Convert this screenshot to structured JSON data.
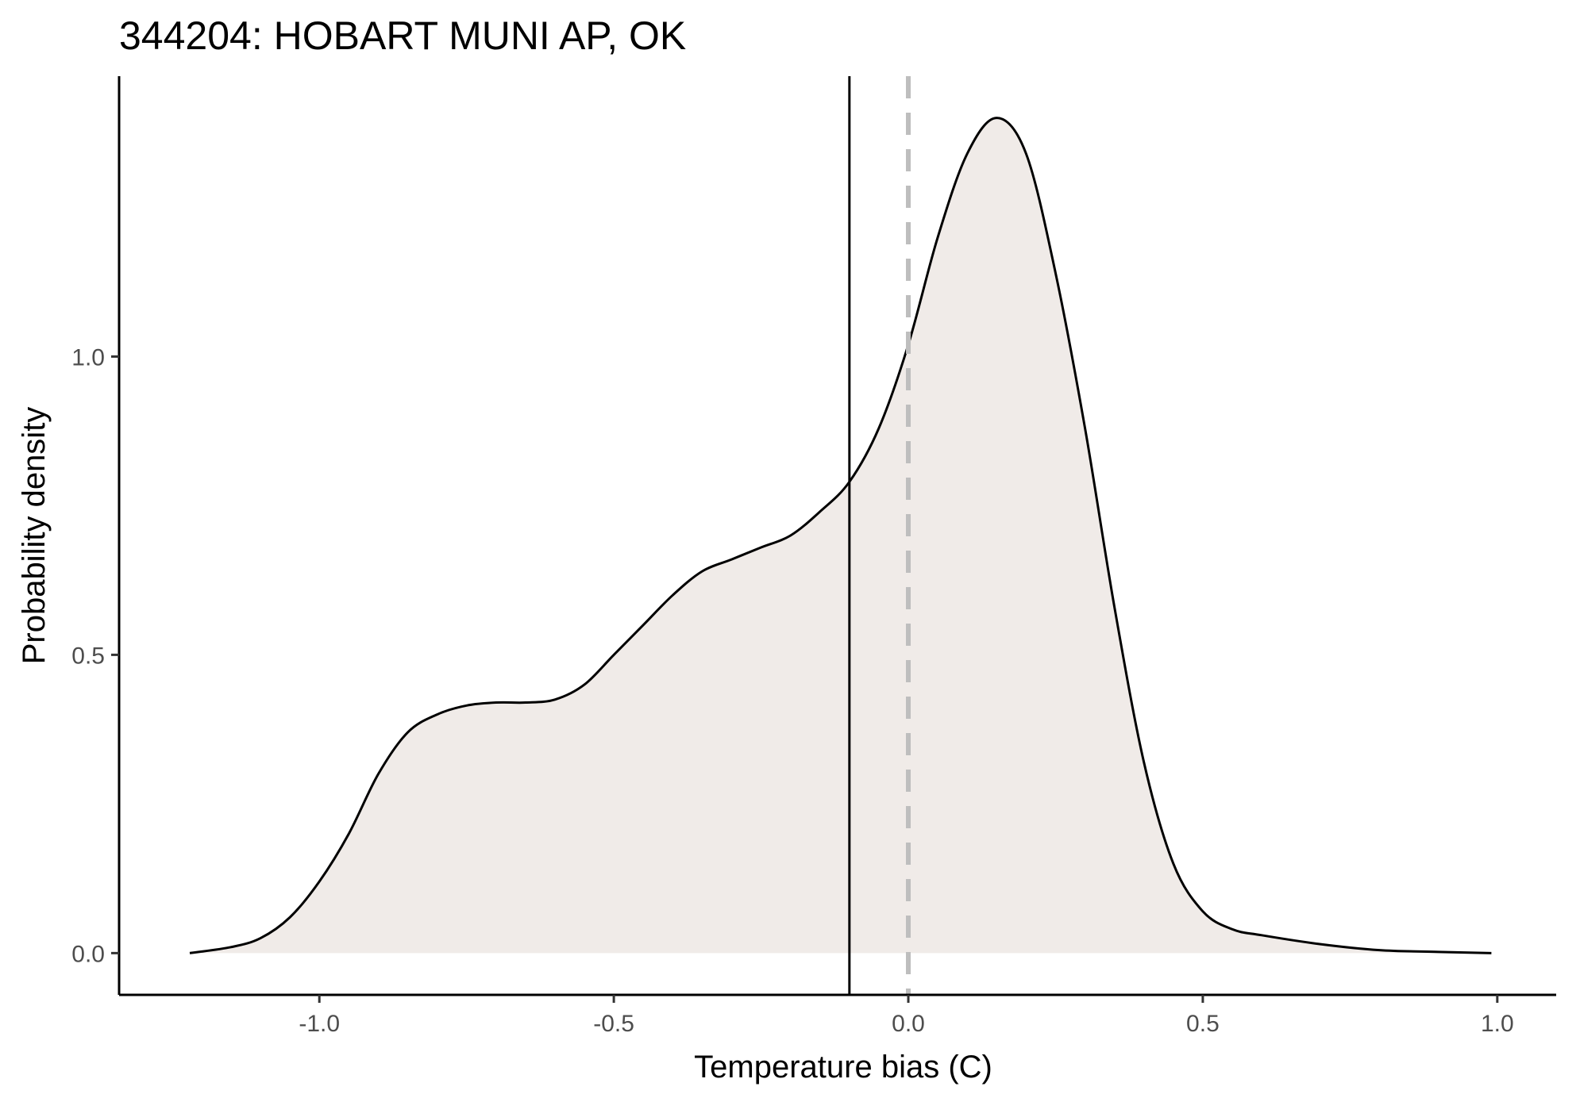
{
  "chart_data": {
    "type": "area",
    "title": "344204: HOBART MUNI AP, OK",
    "xlabel": "Temperature bias (C)",
    "ylabel": "Probability density",
    "xlim": [
      -1.34,
      1.1
    ],
    "ylim": [
      -0.07,
      1.47
    ],
    "x_ticks": [
      -1.0,
      -0.5,
      0.0,
      0.5,
      1.0
    ],
    "x_tick_labels": [
      "-1.0",
      "-0.5",
      "0.0",
      "0.5",
      "1.0"
    ],
    "y_ticks": [
      0.0,
      0.5,
      1.0
    ],
    "y_tick_labels": [
      "0.0",
      "0.5",
      "1.0"
    ],
    "grid": false,
    "fill_color": "#f0ebe8",
    "line_color": "#000000",
    "series": [
      {
        "x": [
          -1.22,
          -1.15,
          -1.1,
          -1.05,
          -1.0,
          -0.95,
          -0.9,
          -0.85,
          -0.8,
          -0.75,
          -0.7,
          -0.65,
          -0.6,
          -0.55,
          -0.5,
          -0.45,
          -0.4,
          -0.35,
          -0.3,
          -0.25,
          -0.2,
          -0.15,
          -0.1,
          -0.05,
          0.0,
          0.05,
          0.1,
          0.15,
          0.2,
          0.25,
          0.3,
          0.35,
          0.4,
          0.45,
          0.5,
          0.55,
          0.6,
          0.7,
          0.8,
          0.9,
          0.99
        ],
        "y": [
          0.0,
          0.01,
          0.025,
          0.06,
          0.12,
          0.2,
          0.3,
          0.37,
          0.4,
          0.415,
          0.42,
          0.42,
          0.425,
          0.45,
          0.5,
          0.55,
          0.6,
          0.64,
          0.66,
          0.68,
          0.7,
          0.74,
          0.79,
          0.88,
          1.02,
          1.2,
          1.34,
          1.4,
          1.34,
          1.14,
          0.88,
          0.58,
          0.32,
          0.15,
          0.07,
          0.04,
          0.03,
          0.015,
          0.005,
          0.002,
          0.0
        ]
      }
    ],
    "reference_lines": [
      {
        "x": -0.1,
        "style": "solid",
        "color": "#000000"
      },
      {
        "x": 0.0,
        "style": "dashed",
        "color": "#bebebe"
      }
    ]
  }
}
